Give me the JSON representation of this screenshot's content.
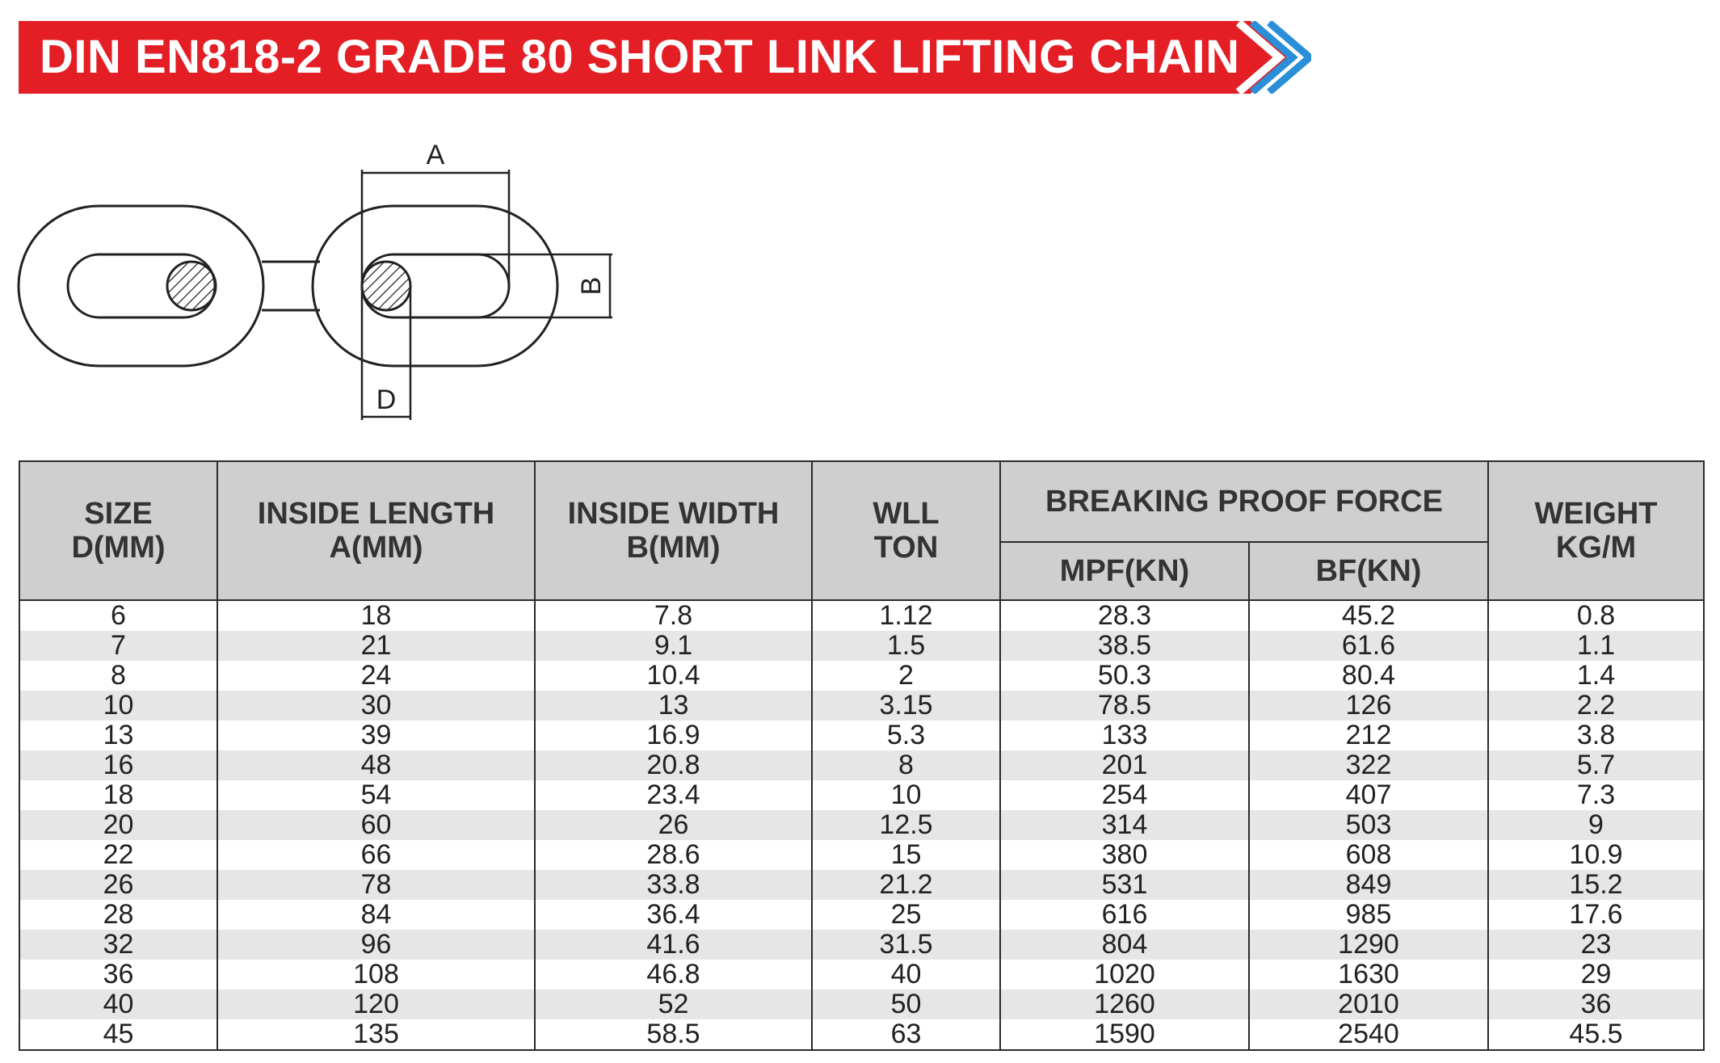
{
  "title": "DIN EN818-2 GRADE 80 SHORT LINK LIFTING CHAIN",
  "colors": {
    "banner": "#e31e24",
    "arrow": "#2a8fd8",
    "header_bg": "#cfcfcf",
    "alt_row": "#e6e6e6"
  },
  "diagram": {
    "label_a": "A",
    "label_b": "B",
    "label_d": "D"
  },
  "table": {
    "headers": {
      "size": [
        "SIZE",
        "D(MM)"
      ],
      "inside_length": [
        "INSIDE LENGTH",
        "A(MM)"
      ],
      "inside_width": [
        "INSIDE WIDTH",
        "B(MM)"
      ],
      "wll": [
        "WLL",
        "TON"
      ],
      "breaking": "BREAKING PROOF FORCE",
      "mpf": "MPF(KN)",
      "bf": "BF(KN)",
      "weight": [
        "WEIGHT",
        "KG/M"
      ]
    },
    "rows": [
      [
        "6",
        "18",
        "7.8",
        "1.12",
        "28.3",
        "45.2",
        "0.8"
      ],
      [
        "7",
        "21",
        "9.1",
        "1.5",
        "38.5",
        "61.6",
        "1.1"
      ],
      [
        "8",
        "24",
        "10.4",
        "2",
        "50.3",
        "80.4",
        "1.4"
      ],
      [
        "10",
        "30",
        "13",
        "3.15",
        "78.5",
        "126",
        "2.2"
      ],
      [
        "13",
        "39",
        "16.9",
        "5.3",
        "133",
        "212",
        "3.8"
      ],
      [
        "16",
        "48",
        "20.8",
        "8",
        "201",
        "322",
        "5.7"
      ],
      [
        "18",
        "54",
        "23.4",
        "10",
        "254",
        "407",
        "7.3"
      ],
      [
        "20",
        "60",
        "26",
        "12.5",
        "314",
        "503",
        "9"
      ],
      [
        "22",
        "66",
        "28.6",
        "15",
        "380",
        "608",
        "10.9"
      ],
      [
        "26",
        "78",
        "33.8",
        "21.2",
        "531",
        "849",
        "15.2"
      ],
      [
        "28",
        "84",
        "36.4",
        "25",
        "616",
        "985",
        "17.6"
      ],
      [
        "32",
        "96",
        "41.6",
        "31.5",
        "804",
        "1290",
        "23"
      ],
      [
        "36",
        "108",
        "46.8",
        "40",
        "1020",
        "1630",
        "29"
      ],
      [
        "40",
        "120",
        "52",
        "50",
        "1260",
        "2010",
        "36"
      ],
      [
        "45",
        "135",
        "58.5",
        "63",
        "1590",
        "2540",
        "45.5"
      ]
    ]
  }
}
